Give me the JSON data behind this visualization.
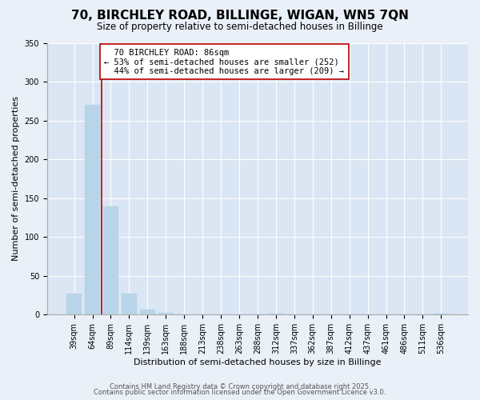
{
  "title": "70, BIRCHLEY ROAD, BILLINGE, WIGAN, WN5 7QN",
  "subtitle": "Size of property relative to semi-detached houses in Billinge",
  "xlabel": "Distribution of semi-detached houses by size in Billinge",
  "ylabel": "Number of semi-detached properties",
  "categories": [
    "39sqm",
    "64sqm",
    "89sqm",
    "114sqm",
    "139sqm",
    "163sqm",
    "188sqm",
    "213sqm",
    "238sqm",
    "263sqm",
    "288sqm",
    "312sqm",
    "337sqm",
    "362sqm",
    "387sqm",
    "412sqm",
    "437sqm",
    "461sqm",
    "486sqm",
    "511sqm",
    "536sqm"
  ],
  "values": [
    27,
    270,
    139,
    27,
    6,
    2,
    0,
    0,
    0,
    0,
    0,
    1,
    0,
    0,
    0,
    0,
    0,
    0,
    0,
    0,
    1
  ],
  "bar_color": "#b8d4e8",
  "bar_edge_color": "#b8d4e8",
  "background_color": "#eaf0f8",
  "plot_bg_color": "#dae6f3",
  "grid_color": "#ffffff",
  "annotation_line_color": "#bb0000",
  "annotation_box_edgecolor": "#bb0000",
  "annotation_fill_color": "#ffffff",
  "property_label": "70 BIRCHLEY ROAD: 86sqm",
  "smaller_pct": 53,
  "smaller_count": 252,
  "larger_pct": 44,
  "larger_count": 209,
  "ylim": [
    0,
    350
  ],
  "yticks": [
    0,
    50,
    100,
    150,
    200,
    250,
    300,
    350
  ],
  "footer_line1": "Contains HM Land Registry data © Crown copyright and database right 2025.",
  "footer_line2": "Contains public sector information licensed under the Open Government Licence v3.0.",
  "title_fontsize": 11,
  "subtitle_fontsize": 8.5,
  "label_fontsize": 8,
  "tick_fontsize": 7,
  "annotation_fontsize": 7.5,
  "footer_fontsize": 6
}
